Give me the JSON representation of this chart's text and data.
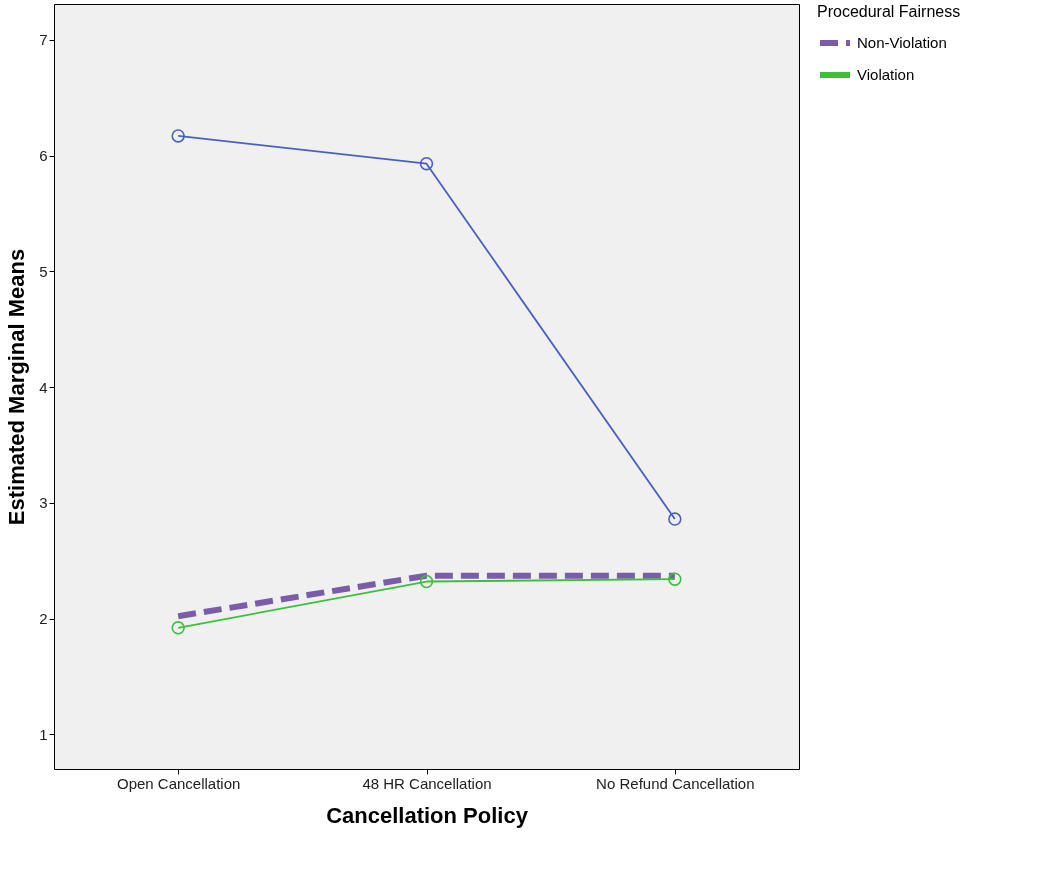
{
  "chart_data": {
    "type": "line",
    "xlabel": "Cancellation Policy",
    "ylabel": "Estimated Marginal Means",
    "legend_title": "Procedural Fairness",
    "categories": [
      "Open Cancellation",
      "48 HR Cancellation",
      "No Refund Cancellation"
    ],
    "series": [
      {
        "color": "#4a5fc1",
        "values": [
          6.17,
          5.93,
          2.86
        ],
        "marker": "circle",
        "line_style": "solid"
      },
      {
        "name": "Non-Violation",
        "color": "#7b5ca8",
        "values": [
          2.02,
          2.37,
          2.37
        ],
        "marker": "none",
        "line_style": "dashed"
      },
      {
        "name": "Violation",
        "color": "#3cbf3c",
        "values": [
          1.92,
          2.32,
          2.34
        ],
        "marker": "circle",
        "line_style": "solid"
      }
    ],
    "ylim": [
      0.7,
      7.31
    ],
    "yticks": [
      1,
      2,
      3,
      4,
      5,
      6,
      7
    ],
    "grid": false,
    "legend": "top right"
  }
}
